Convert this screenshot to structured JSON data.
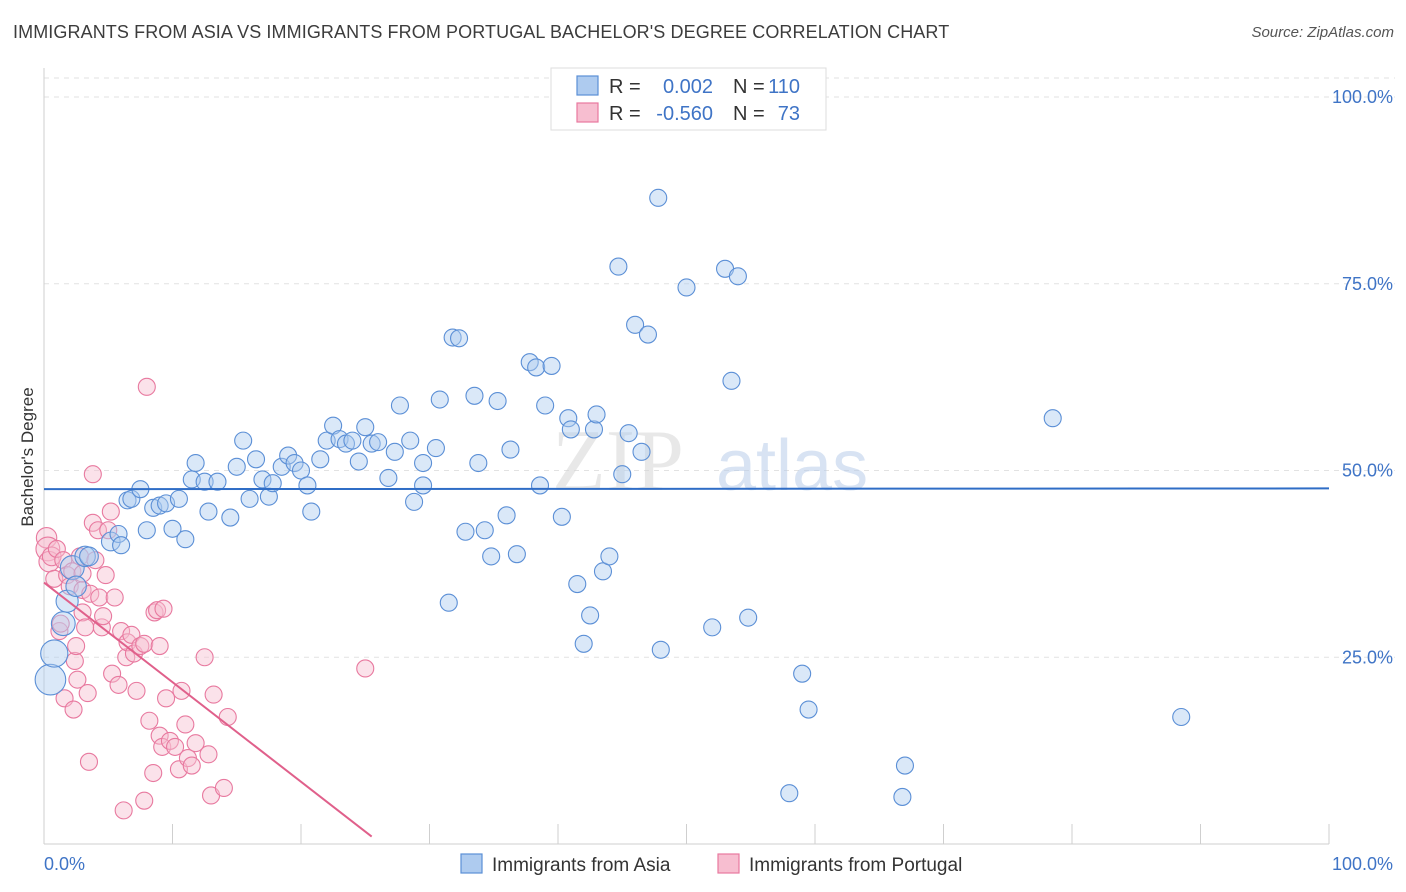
{
  "title": "IMMIGRANTS FROM ASIA VS IMMIGRANTS FROM PORTUGAL BACHELOR'S DEGREE CORRELATION CHART",
  "source": "Source: ZipAtlas.com",
  "watermark": {
    "zip": "ZIP",
    "atlas": "atlas"
  },
  "colors": {
    "asia": "#5b8fd6",
    "asia_fill": "#aecbef",
    "portugal": "#e8799f",
    "portugal_fill": "#f7bed0",
    "tick": "#3f74c6"
  },
  "legend": {
    "rows": [
      {
        "r_label": "R =",
        "r_value": "0.002",
        "n_label": "N =",
        "n_value": "110"
      },
      {
        "r_label": "R =",
        "r_value": "-0.560",
        "n_label": "N =",
        "n_value": "73"
      }
    ]
  },
  "chart_data": {
    "type": "scatter",
    "title": "IMMIGRANTS FROM ASIA VS IMMIGRANTS FROM PORTUGAL BACHELOR'S DEGREE CORRELATION CHART",
    "xlabel": "",
    "ylabel": "Bachelor's Degree",
    "xlim": [
      0,
      100
    ],
    "ylim": [
      0,
      100
    ],
    "x_tick_labels": [
      "0.0%",
      "100.0%"
    ],
    "y_tick_labels": [
      "25.0%",
      "50.0%",
      "75.0%",
      "100.0%"
    ],
    "y_ticks": [
      25,
      50,
      75,
      100
    ],
    "grid": true,
    "legend_position": "top-center",
    "series": [
      {
        "name": "Immigrants from Asia",
        "color": "#5b8fd6",
        "trend": {
          "x": [
            0,
            100
          ],
          "y": [
            47.5,
            47.6
          ]
        },
        "points": [
          [
            0.5,
            22,
            1.8
          ],
          [
            0.8,
            25.5,
            1.6
          ],
          [
            1.5,
            29.5,
            1.4
          ],
          [
            1.8,
            32.5,
            1.3
          ],
          [
            2.2,
            37,
            1.4
          ],
          [
            2.5,
            34.5,
            1.2
          ],
          [
            3.2,
            38.5,
            1.2
          ],
          [
            3.5,
            38.5,
            1.1
          ],
          [
            5.2,
            40.5,
            1.1
          ],
          [
            5.8,
            41.5,
            1
          ],
          [
            6.0,
            40,
            1
          ],
          [
            6.5,
            46,
            1
          ],
          [
            6.8,
            46.2,
            1
          ],
          [
            7.5,
            47.5,
            1
          ],
          [
            8.0,
            42,
            1
          ],
          [
            8.5,
            45,
            1
          ],
          [
            9.0,
            45.3,
            1
          ],
          [
            9.5,
            45.6,
            1
          ],
          [
            10.0,
            42.2,
            1
          ],
          [
            10.5,
            46.2,
            1
          ],
          [
            11.0,
            40.8,
            1
          ],
          [
            11.5,
            48.8,
            1
          ],
          [
            11.8,
            51,
            1
          ],
          [
            12.5,
            48.5,
            1
          ],
          [
            12.8,
            44.5,
            1
          ],
          [
            13.5,
            48.5,
            1
          ],
          [
            14.5,
            43.7,
            1
          ],
          [
            15.0,
            50.5,
            1
          ],
          [
            15.5,
            54,
            1
          ],
          [
            16.0,
            46.2,
            1
          ],
          [
            16.5,
            51.5,
            1
          ],
          [
            17.0,
            48.8,
            1
          ],
          [
            17.5,
            46.5,
            1
          ],
          [
            17.8,
            48.3,
            1
          ],
          [
            18.5,
            50.5,
            1
          ],
          [
            19.0,
            52,
            1
          ],
          [
            19.5,
            51,
            1
          ],
          [
            20.0,
            50,
            1
          ],
          [
            20.5,
            48,
            1
          ],
          [
            20.8,
            44.5,
            1
          ],
          [
            21.5,
            51.5,
            1
          ],
          [
            22.0,
            54,
            1
          ],
          [
            22.5,
            56,
            1
          ],
          [
            23.0,
            54.2,
            1
          ],
          [
            23.5,
            53.6,
            1
          ],
          [
            24.0,
            54,
            1
          ],
          [
            24.5,
            51.2,
            1
          ],
          [
            25.0,
            55.8,
            1
          ],
          [
            25.5,
            53.6,
            1
          ],
          [
            26.0,
            53.8,
            1
          ],
          [
            26.8,
            49,
            1
          ],
          [
            27.3,
            52.5,
            1
          ],
          [
            27.7,
            58.7,
            1
          ],
          [
            28.5,
            54,
            1
          ],
          [
            28.8,
            45.8,
            1
          ],
          [
            29.5,
            51,
            1
          ],
          [
            29.5,
            48,
            1
          ],
          [
            30.5,
            53,
            1
          ],
          [
            30.8,
            59.5,
            1
          ],
          [
            31.5,
            32.3,
            1
          ],
          [
            31.8,
            67.8,
            1
          ],
          [
            32.3,
            67.7,
            1
          ],
          [
            32.8,
            41.8,
            1
          ],
          [
            33.5,
            60,
            1
          ],
          [
            33.8,
            51,
            1
          ],
          [
            34.3,
            42,
            1
          ],
          [
            34.8,
            38.5,
            1
          ],
          [
            35.3,
            59.3,
            1
          ],
          [
            36.0,
            44,
            1
          ],
          [
            36.3,
            52.8,
            1
          ],
          [
            36.8,
            38.8,
            1
          ],
          [
            37.8,
            64.5,
            1
          ],
          [
            38.3,
            63.8,
            1
          ],
          [
            38.6,
            48,
            1
          ],
          [
            39.0,
            58.7,
            1
          ],
          [
            39.5,
            64,
            1
          ],
          [
            40.3,
            43.8,
            1
          ],
          [
            40.8,
            57,
            1
          ],
          [
            41.0,
            55.5,
            1
          ],
          [
            41.5,
            34.8,
            1
          ],
          [
            42.0,
            26.8,
            1
          ],
          [
            42.5,
            30.6,
            1
          ],
          [
            42.8,
            55.5,
            1
          ],
          [
            43.0,
            57.5,
            1
          ],
          [
            43.5,
            36.5,
            1
          ],
          [
            44.0,
            38.5,
            1
          ],
          [
            45.0,
            49.5,
            1
          ],
          [
            45.5,
            55,
            1
          ],
          [
            46.0,
            69.5,
            1
          ],
          [
            46.5,
            52.5,
            1
          ],
          [
            47.0,
            68.2,
            1
          ],
          [
            47.8,
            86.5,
            1
          ],
          [
            48.0,
            26,
            1
          ],
          [
            50.0,
            74.5,
            1
          ],
          [
            52.0,
            29,
            1
          ],
          [
            53.0,
            77,
            1
          ],
          [
            53.5,
            62,
            1
          ],
          [
            54.0,
            76,
            1
          ],
          [
            54.8,
            30.3,
            1
          ],
          [
            58.0,
            6.8,
            1
          ],
          [
            59.0,
            22.8,
            1
          ],
          [
            59.5,
            18,
            1
          ],
          [
            66.8,
            6.3,
            1
          ],
          [
            67.0,
            10.5,
            1
          ],
          [
            78.5,
            57,
            1
          ],
          [
            88.5,
            17,
            1
          ],
          [
            44.7,
            77.3,
            1
          ]
        ]
      },
      {
        "name": "Immigrants from Portugal",
        "color": "#e8799f",
        "trend": {
          "x": [
            0,
            25.5
          ],
          "y": [
            35,
            1
          ]
        },
        "points": [
          [
            0.2,
            41,
            1.2
          ],
          [
            0.3,
            39.5,
            1.4
          ],
          [
            0.4,
            37.8,
            1.2
          ],
          [
            0.6,
            38.5,
            1.1
          ],
          [
            0.8,
            35.5,
            1
          ],
          [
            1.0,
            39.5,
            1
          ],
          [
            1.2,
            28.5,
            1
          ],
          [
            1.3,
            29.5,
            1
          ],
          [
            1.5,
            38,
            1
          ],
          [
            1.6,
            19.5,
            1
          ],
          [
            1.8,
            36,
            1
          ],
          [
            2.0,
            34.5,
            1
          ],
          [
            2.2,
            36.5,
            1
          ],
          [
            2.3,
            18,
            1
          ],
          [
            2.4,
            24.5,
            1
          ],
          [
            2.5,
            26.5,
            1
          ],
          [
            2.6,
            22,
            1
          ],
          [
            2.8,
            38.5,
            1
          ],
          [
            3.0,
            34,
            1
          ],
          [
            3.0,
            31,
            1
          ],
          [
            3.2,
            29,
            1
          ],
          [
            3.4,
            20.2,
            1
          ],
          [
            3.5,
            11,
            1
          ],
          [
            3.6,
            33.5,
            1
          ],
          [
            3.8,
            49.5,
            1
          ],
          [
            3.8,
            43,
            1
          ],
          [
            4.0,
            38,
            1
          ],
          [
            4.2,
            42,
            1
          ],
          [
            4.3,
            33,
            1
          ],
          [
            4.5,
            29,
            1
          ],
          [
            4.6,
            30.5,
            1
          ],
          [
            4.8,
            36,
            1
          ],
          [
            5.0,
            42,
            1
          ],
          [
            5.2,
            44.5,
            1
          ],
          [
            5.3,
            22.8,
            1
          ],
          [
            5.5,
            33,
            1
          ],
          [
            5.8,
            21.3,
            1
          ],
          [
            6.0,
            28.5,
            1
          ],
          [
            6.2,
            4.5,
            1
          ],
          [
            6.4,
            25,
            1
          ],
          [
            6.5,
            27,
            1
          ],
          [
            6.8,
            28,
            1
          ],
          [
            7.0,
            25.5,
            1
          ],
          [
            7.2,
            20.5,
            1
          ],
          [
            7.5,
            26.5,
            1
          ],
          [
            7.8,
            5.8,
            1
          ],
          [
            7.8,
            26.8,
            1
          ],
          [
            8.0,
            61.2,
            1
          ],
          [
            8.2,
            16.5,
            1
          ],
          [
            8.5,
            9.5,
            1
          ],
          [
            8.6,
            31,
            1
          ],
          [
            8.8,
            31.3,
            1
          ],
          [
            9.0,
            26.5,
            1
          ],
          [
            9.0,
            14.5,
            1
          ],
          [
            9.2,
            13,
            1
          ],
          [
            9.3,
            31.5,
            1
          ],
          [
            9.5,
            19.5,
            1
          ],
          [
            9.8,
            13.8,
            1
          ],
          [
            10.2,
            13,
            1
          ],
          [
            10.5,
            10,
            1
          ],
          [
            10.7,
            20.5,
            1
          ],
          [
            11.0,
            16,
            1
          ],
          [
            11.2,
            11.5,
            1
          ],
          [
            11.5,
            10.5,
            1
          ],
          [
            11.8,
            13.5,
            1
          ],
          [
            12.5,
            25,
            1
          ],
          [
            12.8,
            12,
            1
          ],
          [
            13.0,
            6.5,
            1
          ],
          [
            13.2,
            20,
            1
          ],
          [
            14.0,
            7.5,
            1
          ],
          [
            14.3,
            17,
            1
          ],
          [
            25.0,
            23.5,
            1
          ],
          [
            3.0,
            36.2,
            1
          ]
        ]
      }
    ]
  },
  "bottom_legend": [
    {
      "label": "Immigrants from Asia"
    },
    {
      "label": "Immigrants from Portugal"
    }
  ]
}
